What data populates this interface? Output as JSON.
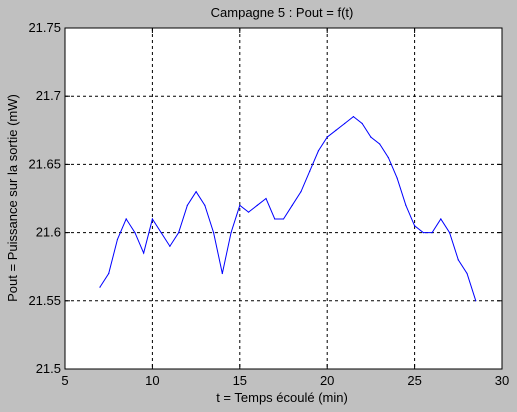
{
  "chart_data": {
    "type": "line",
    "title": "Campagne 5 : Pout = f(t)",
    "xlabel": "t = Temps écoulé (min)",
    "ylabel": "Pout = Puissance sur la sortie (mW)",
    "xlim": [
      5,
      30
    ],
    "ylim": [
      21.5,
      21.75
    ],
    "xticks": [
      5,
      10,
      15,
      20,
      25,
      30
    ],
    "yticks": [
      21.5,
      21.55,
      21.6,
      21.65,
      21.7,
      21.75
    ],
    "xtick_labels": [
      "5",
      "10",
      "15",
      "20",
      "25",
      "30"
    ],
    "ytick_labels": [
      "21.5",
      "21.55",
      "21.6",
      "21.65",
      "21.7",
      "21.75"
    ],
    "grid": true,
    "grid_style": "dashed",
    "series": [
      {
        "color": "#0000ff",
        "x": [
          7.0,
          7.5,
          8.0,
          8.5,
          9.0,
          9.5,
          10.0,
          10.5,
          11.0,
          11.5,
          12.0,
          12.5,
          13.0,
          13.5,
          14.0,
          14.5,
          15.0,
          15.5,
          16.0,
          16.5,
          17.0,
          17.5,
          18.0,
          18.5,
          19.0,
          19.5,
          20.0,
          20.5,
          21.0,
          21.5,
          22.0,
          22.5,
          23.0,
          23.5,
          24.0,
          24.5,
          25.0,
          25.5,
          26.0,
          26.5,
          27.0,
          27.5,
          28.0,
          28.5
        ],
        "y": [
          21.56,
          21.57,
          21.595,
          21.61,
          21.6,
          21.585,
          21.61,
          21.6,
          21.59,
          21.6,
          21.62,
          21.63,
          21.62,
          21.6,
          21.57,
          21.6,
          21.62,
          21.615,
          21.62,
          21.625,
          21.61,
          21.61,
          21.62,
          21.63,
          21.645,
          21.66,
          21.67,
          21.675,
          21.68,
          21.685,
          21.68,
          21.67,
          21.665,
          21.655,
          21.64,
          21.62,
          21.605,
          21.6,
          21.6,
          21.61,
          21.6,
          21.58,
          21.57,
          21.55
        ]
      }
    ]
  }
}
